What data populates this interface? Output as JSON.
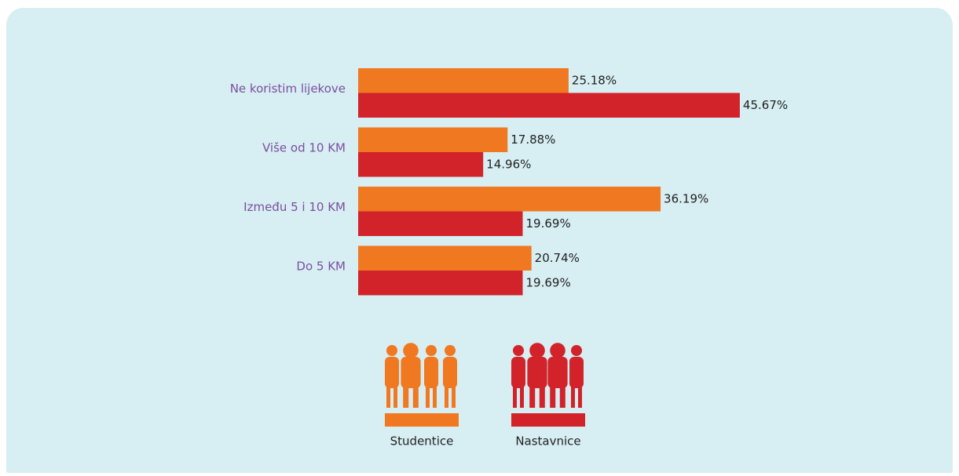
{
  "chart_data": {
    "type": "hbar",
    "categories": [
      "Ne koristim lijekove",
      "Više od 10 KM",
      "Između 5 i 10 KM",
      "Do 5 KM"
    ],
    "series": [
      {
        "name": "Studentice",
        "color": "#f07820",
        "values": [
          25.18,
          17.88,
          36.19,
          20.74
        ],
        "value_labels": [
          "25.18%",
          "17.88%",
          "36.19%",
          "20.74%"
        ]
      },
      {
        "name": "Nastavnice",
        "color": "#d2232a",
        "values": [
          45.67,
          14.96,
          19.69,
          19.69
        ],
        "value_labels": [
          "45.67%",
          "14.96%",
          "19.69%",
          "19.69%"
        ]
      }
    ],
    "legend": "bottom"
  }
}
